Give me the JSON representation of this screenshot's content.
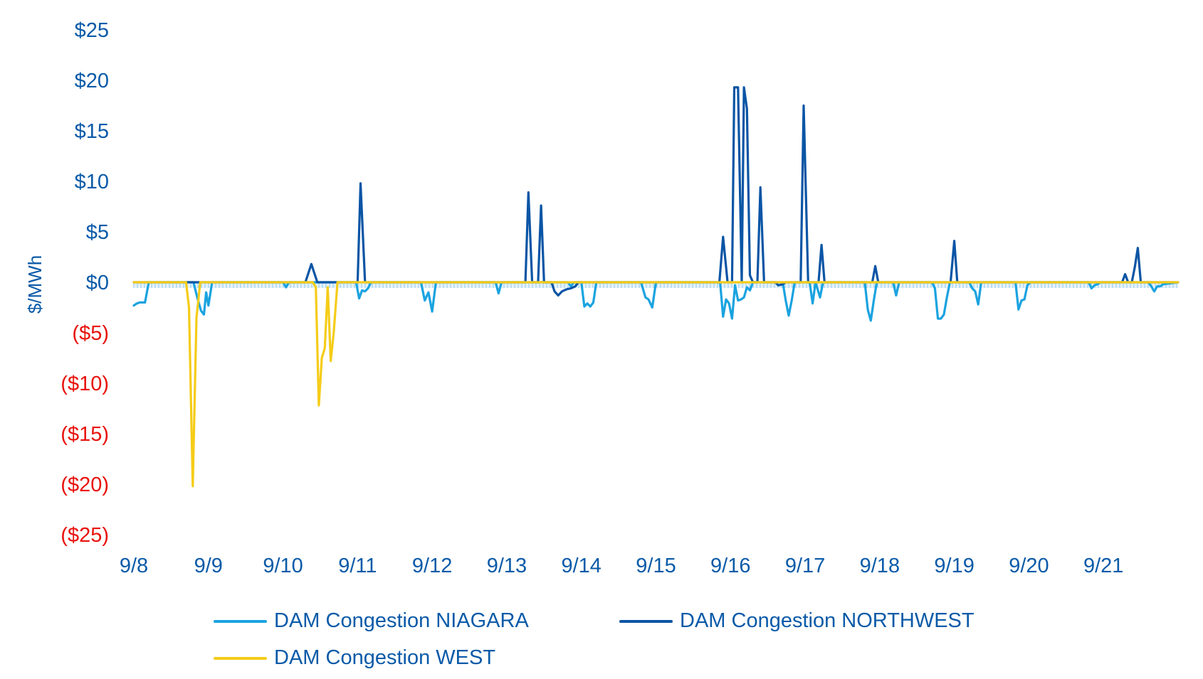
{
  "chart_data": {
    "type": "line",
    "title": "",
    "xlabel": "",
    "ylabel": "$/MWh",
    "ylim": [
      -25,
      25
    ],
    "y_ticks": [
      {
        "value": 25,
        "label": "$25"
      },
      {
        "value": 20,
        "label": "$20"
      },
      {
        "value": 15,
        "label": "$15"
      },
      {
        "value": 10,
        "label": "$10"
      },
      {
        "value": 5,
        "label": "$5"
      },
      {
        "value": 0,
        "label": "$0"
      },
      {
        "value": -5,
        "label": "($5)"
      },
      {
        "value": -10,
        "label": "($10)"
      },
      {
        "value": -15,
        "label": "($15)"
      },
      {
        "value": -20,
        "label": "($20)"
      },
      {
        "value": -25,
        "label": "($25)"
      }
    ],
    "xlim": [
      0,
      14
    ],
    "x_ticks": [
      {
        "value": 0,
        "label": "9/8"
      },
      {
        "value": 1,
        "label": "9/9"
      },
      {
        "value": 2,
        "label": "9/10"
      },
      {
        "value": 3,
        "label": "9/11"
      },
      {
        "value": 4,
        "label": "9/12"
      },
      {
        "value": 5,
        "label": "9/13"
      },
      {
        "value": 6,
        "label": "9/14"
      },
      {
        "value": 7,
        "label": "9/15"
      },
      {
        "value": 8,
        "label": "9/16"
      },
      {
        "value": 9,
        "label": "9/17"
      },
      {
        "value": 10,
        "label": "9/18"
      },
      {
        "value": 11,
        "label": "9/19"
      },
      {
        "value": 12,
        "label": "9/20"
      },
      {
        "value": 13,
        "label": "9/21"
      }
    ],
    "x_unit": "days since 9/8",
    "series": [
      {
        "name": "DAM Congestion NIAGARA",
        "color": "#1aa3e0",
        "points": [
          [
            0,
            -2.3
          ],
          [
            0.04,
            -2.1
          ],
          [
            0.08,
            -2.0
          ],
          [
            0.12,
            -2.0
          ],
          [
            0.15,
            -2.0
          ],
          [
            0.2,
            0
          ],
          [
            0.8,
            0
          ],
          [
            0.85,
            -1.5
          ],
          [
            0.9,
            -2.8
          ],
          [
            0.94,
            -3.2
          ],
          [
            0.97,
            -1.0
          ],
          [
            1.0,
            -2.3
          ],
          [
            1.05,
            0
          ],
          [
            2.0,
            0
          ],
          [
            2.04,
            -0.5
          ],
          [
            2.08,
            0
          ],
          [
            2.98,
            0
          ],
          [
            3.02,
            -1.6
          ],
          [
            3.06,
            -0.8
          ],
          [
            3.1,
            -0.9
          ],
          [
            3.14,
            -0.6
          ],
          [
            3.18,
            0
          ],
          [
            3.85,
            0
          ],
          [
            3.9,
            -1.8
          ],
          [
            3.95,
            -1.0
          ],
          [
            4.0,
            -2.9
          ],
          [
            4.05,
            0
          ],
          [
            4.85,
            0
          ],
          [
            4.89,
            -1.1
          ],
          [
            4.93,
            0
          ],
          [
            5.82,
            0
          ],
          [
            5.86,
            -0.4
          ],
          [
            5.9,
            0
          ],
          [
            6.0,
            0
          ],
          [
            6.04,
            -2.4
          ],
          [
            6.08,
            -2.1
          ],
          [
            6.12,
            -2.4
          ],
          [
            6.16,
            -2.0
          ],
          [
            6.2,
            0
          ],
          [
            6.8,
            0
          ],
          [
            6.86,
            -1.5
          ],
          [
            6.9,
            -1.7
          ],
          [
            6.95,
            -2.5
          ],
          [
            7.0,
            0
          ],
          [
            7.86,
            0
          ],
          [
            7.9,
            -3.4
          ],
          [
            7.94,
            -1.7
          ],
          [
            7.98,
            -2.1
          ],
          [
            8.02,
            -3.6
          ],
          [
            8.06,
            -0.3
          ],
          [
            8.1,
            -1.8
          ],
          [
            8.14,
            -1.7
          ],
          [
            8.18,
            -1.5
          ],
          [
            8.22,
            -0.5
          ],
          [
            8.26,
            -0.8
          ],
          [
            8.3,
            0
          ],
          [
            8.7,
            0
          ],
          [
            8.74,
            -1.8
          ],
          [
            8.78,
            -3.3
          ],
          [
            8.82,
            -1.8
          ],
          [
            8.86,
            0
          ],
          [
            9.06,
            0
          ],
          [
            9.1,
            -2.1
          ],
          [
            9.14,
            0
          ],
          [
            9.2,
            -1.5
          ],
          [
            9.24,
            0
          ],
          [
            9.8,
            0
          ],
          [
            9.84,
            -2.7
          ],
          [
            9.88,
            -3.8
          ],
          [
            9.92,
            -1.8
          ],
          [
            9.96,
            0
          ],
          [
            10.18,
            0
          ],
          [
            10.22,
            -1.3
          ],
          [
            10.26,
            0
          ],
          [
            10.7,
            0
          ],
          [
            10.74,
            -0.6
          ],
          [
            10.78,
            -3.6
          ],
          [
            10.82,
            -3.6
          ],
          [
            10.86,
            -3.2
          ],
          [
            10.9,
            -1.5
          ],
          [
            10.94,
            0
          ],
          [
            11.2,
            0
          ],
          [
            11.24,
            -0.6
          ],
          [
            11.28,
            -0.9
          ],
          [
            11.32,
            -2.2
          ],
          [
            11.36,
            0
          ],
          [
            11.82,
            0
          ],
          [
            11.86,
            -2.7
          ],
          [
            11.9,
            -1.8
          ],
          [
            11.94,
            -1.7
          ],
          [
            11.98,
            -0.3
          ],
          [
            12.02,
            0
          ],
          [
            12.8,
            0
          ],
          [
            12.84,
            -0.6
          ],
          [
            12.88,
            -0.3
          ],
          [
            12.92,
            -0.2
          ],
          [
            12.96,
            0
          ],
          [
            13.6,
            0
          ],
          [
            13.64,
            -0.4
          ],
          [
            13.68,
            -0.9
          ],
          [
            13.72,
            -0.4
          ],
          [
            13.76,
            -0.4
          ],
          [
            13.8,
            -0.2
          ],
          [
            14.0,
            0
          ]
        ]
      },
      {
        "name": "DAM Congestion NORTHWEST",
        "color": "#0a55a5",
        "points": [
          [
            0,
            0
          ],
          [
            2.3,
            0
          ],
          [
            2.38,
            1.8
          ],
          [
            2.46,
            0
          ],
          [
            3.0,
            0
          ],
          [
            3.04,
            9.8
          ],
          [
            3.1,
            0
          ],
          [
            5.25,
            0
          ],
          [
            5.29,
            8.9
          ],
          [
            5.34,
            0
          ],
          [
            5.42,
            0
          ],
          [
            5.46,
            7.6
          ],
          [
            5.5,
            0
          ],
          [
            5.6,
            0
          ],
          [
            5.64,
            -0.9
          ],
          [
            5.69,
            -1.3
          ],
          [
            5.74,
            -0.9
          ],
          [
            5.8,
            -0.7
          ],
          [
            5.86,
            -0.6
          ],
          [
            5.92,
            -0.4
          ],
          [
            5.96,
            0
          ],
          [
            7.85,
            0
          ],
          [
            7.9,
            4.5
          ],
          [
            7.96,
            0
          ],
          [
            8.02,
            0
          ],
          [
            8.05,
            19.3
          ],
          [
            8.1,
            19.3
          ],
          [
            8.15,
            0
          ],
          [
            8.18,
            19.3
          ],
          [
            8.22,
            17.2
          ],
          [
            8.26,
            0.7
          ],
          [
            8.3,
            0
          ],
          [
            8.36,
            0
          ],
          [
            8.4,
            9.4
          ],
          [
            8.45,
            0
          ],
          [
            8.6,
            0
          ],
          [
            8.64,
            -0.3
          ],
          [
            8.7,
            -0.2
          ],
          [
            8.74,
            0
          ],
          [
            8.94,
            0
          ],
          [
            8.98,
            17.5
          ],
          [
            9.04,
            0
          ],
          [
            9.18,
            0
          ],
          [
            9.22,
            3.7
          ],
          [
            9.26,
            0
          ],
          [
            9.9,
            0
          ],
          [
            9.94,
            1.6
          ],
          [
            9.98,
            0
          ],
          [
            10.95,
            0
          ],
          [
            11.0,
            4.1
          ],
          [
            11.04,
            0
          ],
          [
            13.25,
            0
          ],
          [
            13.29,
            0.8
          ],
          [
            13.33,
            0
          ],
          [
            13.38,
            0
          ],
          [
            13.42,
            1.5
          ],
          [
            13.46,
            3.4
          ],
          [
            13.5,
            0
          ],
          [
            14.0,
            0
          ]
        ]
      },
      {
        "name": "DAM Congestion WEST",
        "color": "#f5cc17",
        "points": [
          [
            0,
            0
          ],
          [
            0.7,
            0
          ],
          [
            0.74,
            -2.5
          ],
          [
            0.79,
            -20.2
          ],
          [
            0.84,
            -3.5
          ],
          [
            0.89,
            0
          ],
          [
            2.4,
            0
          ],
          [
            2.44,
            -0.5
          ],
          [
            2.48,
            -12.2
          ],
          [
            2.52,
            -7.5
          ],
          [
            2.56,
            -6.5
          ],
          [
            2.6,
            -0.5
          ],
          [
            2.64,
            -7.8
          ],
          [
            2.68,
            -5.0
          ],
          [
            2.73,
            0
          ],
          [
            14.0,
            0
          ]
        ]
      }
    ],
    "legend": {
      "position": "bottom"
    }
  }
}
